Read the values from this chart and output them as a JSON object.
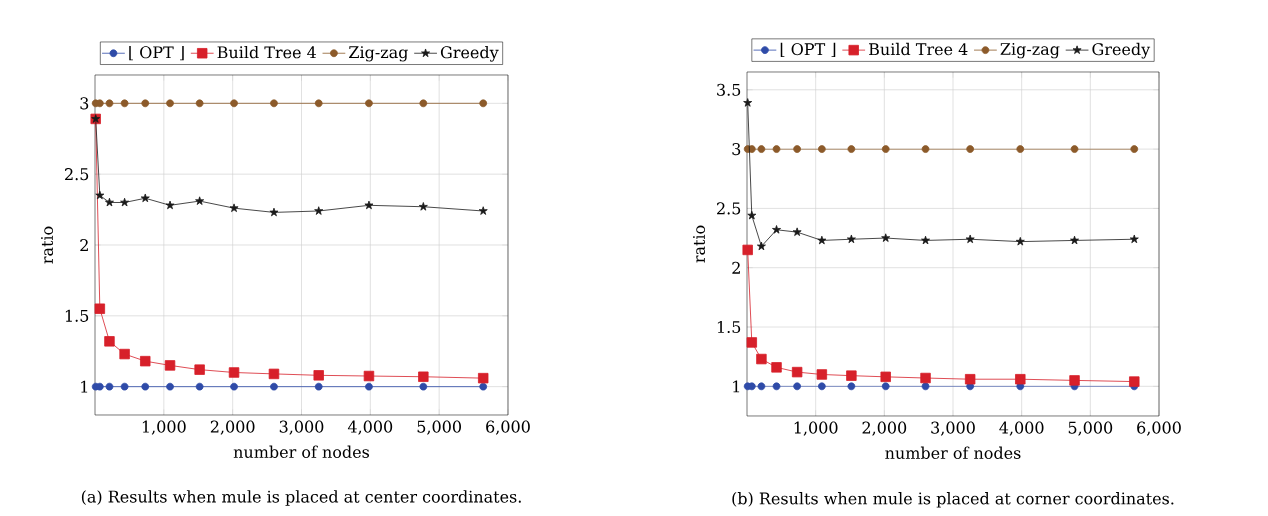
{
  "chart_data": [
    {
      "type": "line",
      "xlabel": "number of nodes",
      "ylabel": "ratio",
      "legend": "top",
      "grid": true,
      "x": [
        10,
        70,
        210,
        430,
        730,
        1090,
        1520,
        2020,
        2600,
        3250,
        3980,
        4770,
        5640
      ],
      "xlim": [
        0,
        6000
      ],
      "ylim": [
        0.8,
        3.2
      ],
      "xticks": [
        {
          "value": 1000,
          "label": "1,000"
        },
        {
          "value": 2000,
          "label": "2,000"
        },
        {
          "value": 3000,
          "label": "3,000"
        },
        {
          "value": 4000,
          "label": "4,000"
        },
        {
          "value": 5000,
          "label": "5,000"
        },
        {
          "value": 6000,
          "label": "6,000"
        }
      ],
      "yticks": [
        1,
        1.5,
        2,
        2.5,
        3
      ],
      "series": [
        {
          "name": "⌊ OPT ⌋",
          "color": "#2f4ba8",
          "marker": "circle",
          "values": [
            1,
            1,
            1,
            1,
            1,
            1,
            1,
            1,
            1,
            1,
            1,
            1,
            1
          ]
        },
        {
          "name": "Build Tree 4",
          "color": "#d7202a",
          "marker": "square",
          "values": [
            2.89,
            1.55,
            1.32,
            1.23,
            1.18,
            1.15,
            1.12,
            1.1,
            1.09,
            1.08,
            1.075,
            1.07,
            1.06
          ]
        },
        {
          "name": "Zig-zag",
          "color": "#8c5a2a",
          "marker": "circle",
          "values": [
            3,
            3,
            3,
            3,
            3,
            3,
            3,
            3,
            3,
            3,
            3,
            3,
            3
          ]
        },
        {
          "name": "Greedy",
          "color": "#1a1a1a",
          "marker": "star",
          "values": [
            2.89,
            2.35,
            2.3,
            2.3,
            2.33,
            2.28,
            2.31,
            2.26,
            2.23,
            2.24,
            2.28,
            2.27,
            2.24
          ]
        }
      ],
      "annotations": [
        "(a) Results when mule is placed at center coordinates."
      ]
    },
    {
      "type": "line",
      "xlabel": "number of nodes",
      "ylabel": "ratio",
      "legend": "top",
      "grid": true,
      "x": [
        10,
        70,
        210,
        430,
        730,
        1090,
        1520,
        2020,
        2600,
        3250,
        3980,
        4770,
        5640
      ],
      "xlim": [
        0,
        6000
      ],
      "ylim": [
        0.75,
        3.65
      ],
      "xticks": [
        {
          "value": 1000,
          "label": "1,000"
        },
        {
          "value": 2000,
          "label": "2,000"
        },
        {
          "value": 3000,
          "label": "3,000"
        },
        {
          "value": 4000,
          "label": "4,000"
        },
        {
          "value": 5000,
          "label": "5,000"
        },
        {
          "value": 6000,
          "label": "6,000"
        }
      ],
      "yticks": [
        1,
        1.5,
        2,
        2.5,
        3,
        3.5
      ],
      "series": [
        {
          "name": "⌊ OPT ⌋",
          "color": "#2f4ba8",
          "marker": "circle",
          "values": [
            1,
            1,
            1,
            1,
            1,
            1,
            1,
            1,
            1,
            1,
            1,
            1,
            1
          ]
        },
        {
          "name": "Build Tree 4",
          "color": "#d7202a",
          "marker": "square",
          "values": [
            2.15,
            1.37,
            1.23,
            1.16,
            1.12,
            1.1,
            1.09,
            1.08,
            1.07,
            1.06,
            1.06,
            1.05,
            1.04
          ]
        },
        {
          "name": "Zig-zag",
          "color": "#8c5a2a",
          "marker": "circle",
          "values": [
            3,
            3,
            3,
            3,
            3,
            3,
            3,
            3,
            3,
            3,
            3,
            3,
            3
          ]
        },
        {
          "name": "Greedy",
          "color": "#1a1a1a",
          "marker": "star",
          "values": [
            3.39,
            2.44,
            2.18,
            2.32,
            2.3,
            2.23,
            2.24,
            2.25,
            2.23,
            2.24,
            2.22,
            2.23,
            2.24
          ]
        }
      ],
      "annotations": [
        "(b) Results when mule is placed at corner coordinates."
      ]
    }
  ]
}
